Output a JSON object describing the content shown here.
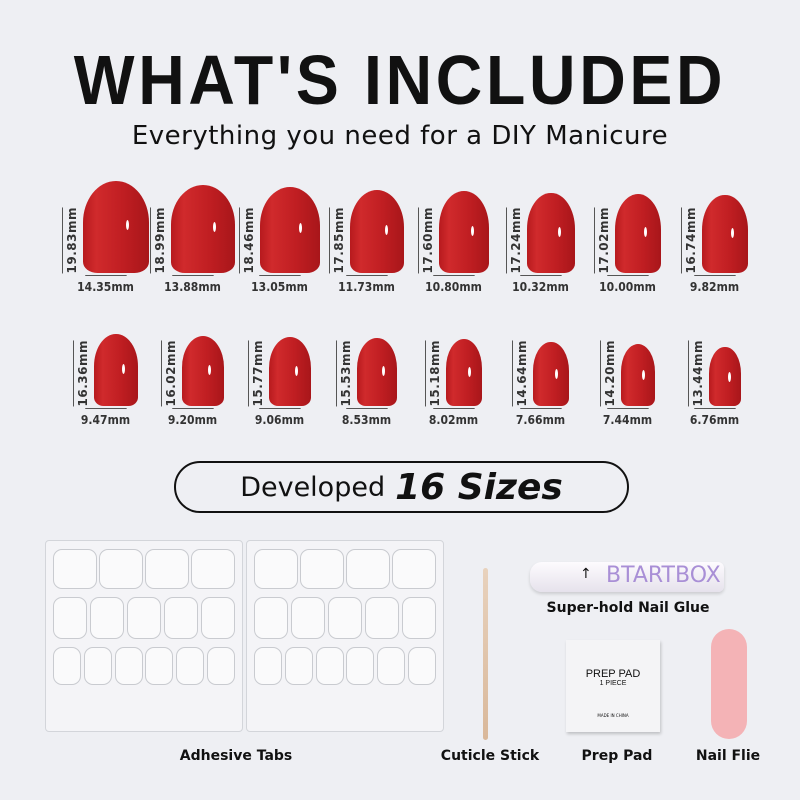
{
  "header": {
    "title": "WHAT'S INCLUDED",
    "subtitle": "Everything you need for a DIY Manicure"
  },
  "sizes": {
    "row1": [
      {
        "h": "19.83mm",
        "w": "14.35mm",
        "hv": 19.83,
        "wv": 14.35
      },
      {
        "h": "18.99mm",
        "w": "13.88mm",
        "hv": 18.99,
        "wv": 13.88
      },
      {
        "h": "18.46mm",
        "w": "13.05mm",
        "hv": 18.46,
        "wv": 13.05
      },
      {
        "h": "17.85mm",
        "w": "11.73mm",
        "hv": 17.85,
        "wv": 11.73
      },
      {
        "h": "17.60mm",
        "w": "10.80mm",
        "hv": 17.6,
        "wv": 10.8
      },
      {
        "h": "17.24mm",
        "w": "10.32mm",
        "hv": 17.24,
        "wv": 10.32
      },
      {
        "h": "17.02mm",
        "w": "10.00mm",
        "hv": 17.02,
        "wv": 10.0
      },
      {
        "h": "16.74mm",
        "w": "9.82mm",
        "hv": 16.74,
        "wv": 9.82
      }
    ],
    "row2": [
      {
        "h": "16.36mm",
        "w": "9.47mm",
        "hv": 16.36,
        "wv": 9.47
      },
      {
        "h": "16.02mm",
        "w": "9.20mm",
        "hv": 16.02,
        "wv": 9.2
      },
      {
        "h": "15.77mm",
        "w": "9.06mm",
        "hv": 15.77,
        "wv": 9.06
      },
      {
        "h": "15.53mm",
        "w": "8.53mm",
        "hv": 15.53,
        "wv": 8.53
      },
      {
        "h": "15.18mm",
        "w": "8.02mm",
        "hv": 15.18,
        "wv": 8.02
      },
      {
        "h": "14.64mm",
        "w": "7.66mm",
        "hv": 14.64,
        "wv": 7.66
      },
      {
        "h": "14.20mm",
        "w": "7.44mm",
        "hv": 14.2,
        "wv": 7.44
      },
      {
        "h": "13.44mm",
        "w": "6.76mm",
        "hv": 13.44,
        "wv": 6.76
      }
    ]
  },
  "nail_color": "#c01e22",
  "banner": {
    "prefix": "Developed",
    "emphasis": "16 Sizes"
  },
  "items": {
    "adhesive": "Adhesive Tabs",
    "stick": "Cuticle Stick",
    "glue": "Super-hold Nail Glue",
    "pad": "Prep Pad",
    "file": "Nail Flie"
  },
  "glue_brand": "BTARTBOX",
  "pad_text": {
    "title": "PREP PAD",
    "count": "1 PIECE",
    "origin": "MADE IN CHINA"
  },
  "file_color": "#f4b3b6"
}
